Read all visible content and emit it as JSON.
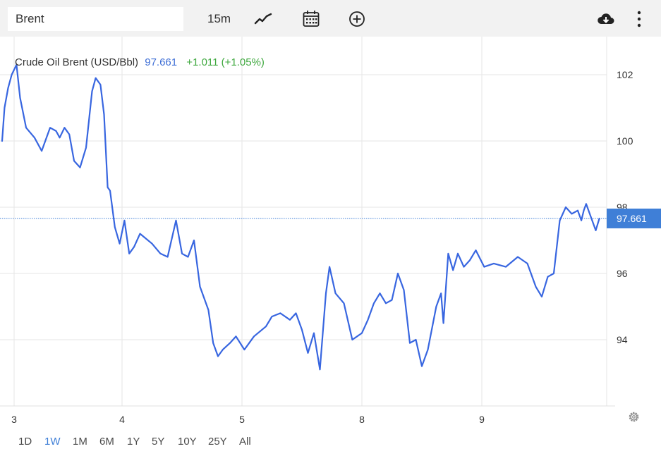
{
  "toolbar": {
    "symbol_value": "Brent",
    "interval_label": "15m",
    "icons": [
      "line-chart-icon",
      "calendar-icon",
      "add-indicator-icon",
      "download-icon",
      "more-vertical-icon"
    ]
  },
  "legend": {
    "name": "Crude Oil Brent (USD/Bbl)",
    "price": "97.661",
    "change": "+1.011 (+1.05%)",
    "price_color": "#3f6fd6",
    "change_color": "#3ea83e"
  },
  "last_price_label": "97.661",
  "colors": {
    "line": "#3866e0",
    "badge": "#3f7fd7",
    "grid": "#e6e6e6",
    "axis_text": "#333333"
  },
  "chart_data": {
    "type": "line",
    "title": "Crude Oil Brent (USD/Bbl)",
    "x_tick_labels": [
      {
        "x": 0.1,
        "label": "3"
      },
      {
        "x": 1.0,
        "label": "4"
      },
      {
        "x": 2.0,
        "label": "5"
      },
      {
        "x": 3.0,
        "label": "8"
      },
      {
        "x": 4.0,
        "label": "9"
      }
    ],
    "y_ticks": [
      94,
      96,
      98,
      100,
      102
    ],
    "ylim": [
      92.0,
      103.15
    ],
    "last_value": 97.661,
    "grid": true,
    "x": [
      0,
      0.02,
      0.05,
      0.08,
      0.12,
      0.15,
      0.2,
      0.27,
      0.33,
      0.4,
      0.45,
      0.48,
      0.52,
      0.56,
      0.6,
      0.65,
      0.7,
      0.75,
      0.78,
      0.82,
      0.85,
      0.88,
      0.9,
      0.94,
      0.98,
      1.02,
      1.06,
      1.1,
      1.15,
      1.25,
      1.32,
      1.38,
      1.45,
      1.5,
      1.55,
      1.6,
      1.65,
      1.72,
      1.76,
      1.8,
      1.84,
      1.9,
      1.95,
      2.02,
      2.1,
      2.2,
      2.25,
      2.32,
      2.4,
      2.45,
      2.5,
      2.55,
      2.6,
      2.65,
      2.7,
      2.73,
      2.78,
      2.85,
      2.92,
      3.0,
      3.05,
      3.1,
      3.15,
      3.2,
      3.25,
      3.3,
      3.35,
      3.4,
      3.45,
      3.5,
      3.55,
      3.62,
      3.66,
      3.68,
      3.72,
      3.76,
      3.8,
      3.85,
      3.9,
      3.95,
      4.02,
      4.1,
      4.2,
      4.3,
      4.38,
      4.45,
      4.5,
      4.55,
      4.6,
      4.65,
      4.7,
      4.75,
      4.8,
      4.83,
      4.85,
      4.87,
      4.9,
      4.95,
      4.98
    ],
    "y": [
      100.0,
      101.0,
      101.6,
      102.0,
      102.3,
      101.3,
      100.4,
      100.1,
      99.7,
      100.4,
      100.3,
      100.1,
      100.4,
      100.2,
      99.4,
      99.2,
      99.8,
      101.5,
      101.9,
      101.7,
      100.8,
      98.6,
      98.5,
      97.4,
      96.9,
      97.6,
      96.6,
      96.8,
      97.2,
      96.9,
      96.6,
      96.5,
      97.6,
      96.6,
      96.5,
      97.0,
      95.6,
      94.9,
      93.9,
      93.5,
      93.7,
      93.9,
      94.1,
      93.7,
      94.1,
      94.4,
      94.7,
      94.8,
      94.6,
      94.8,
      94.3,
      93.6,
      94.2,
      93.1,
      95.4,
      96.2,
      95.4,
      95.1,
      94.0,
      94.2,
      94.6,
      95.1,
      95.4,
      95.1,
      95.2,
      96.0,
      95.5,
      93.9,
      94.0,
      93.2,
      93.7,
      95.0,
      95.4,
      94.5,
      96.6,
      96.1,
      96.6,
      96.2,
      96.4,
      96.7,
      96.2,
      96.3,
      96.2,
      96.5,
      96.3,
      95.6,
      95.3,
      95.9,
      96.0,
      97.6,
      98.0,
      97.8,
      97.9,
      97.6,
      97.9,
      98.1,
      97.8,
      97.3,
      97.661
    ]
  },
  "settings_icon": "gear-icon",
  "range_buttons": [
    {
      "label": "1D",
      "active": false
    },
    {
      "label": "1W",
      "active": true
    },
    {
      "label": "1M",
      "active": false
    },
    {
      "label": "6M",
      "active": false
    },
    {
      "label": "1Y",
      "active": false
    },
    {
      "label": "5Y",
      "active": false
    },
    {
      "label": "10Y",
      "active": false
    },
    {
      "label": "25Y",
      "active": false
    },
    {
      "label": "All",
      "active": false
    }
  ]
}
